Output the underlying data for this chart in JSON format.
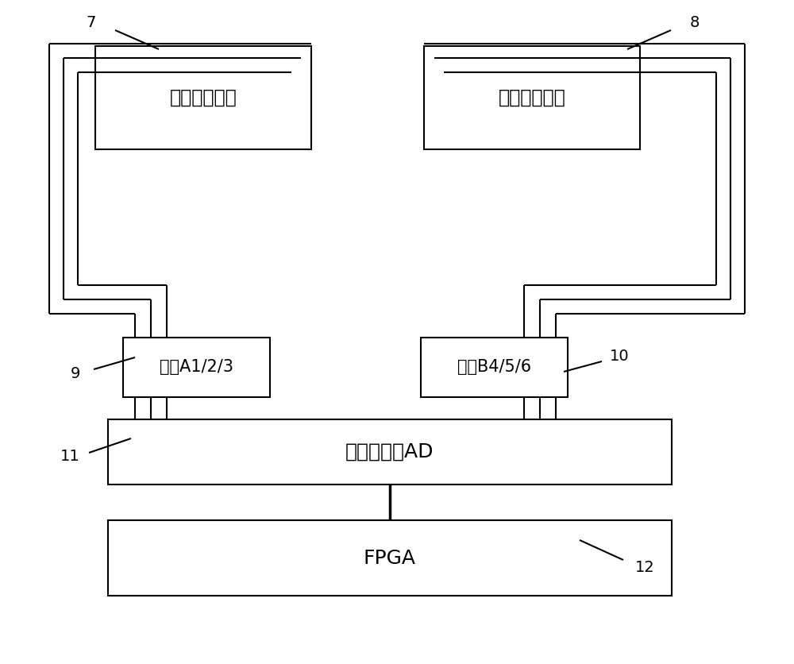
{
  "bg_color": "#ffffff",
  "box_color": "#ffffff",
  "line_color": "#000000",
  "text_color": "#000000",
  "sensor_left_label": "测量力传感器",
  "sensor_right_label": "参考力传感器",
  "bridge_left_label": "电桥A1/2/3",
  "bridge_right_label": "电桥B4/5/6",
  "ad_label": "多通道高速AD",
  "fpga_label": "FPGA",
  "label_7": "7",
  "label_8": "8",
  "label_9": "9",
  "label_10": "10",
  "label_11": "11",
  "label_12": "12"
}
